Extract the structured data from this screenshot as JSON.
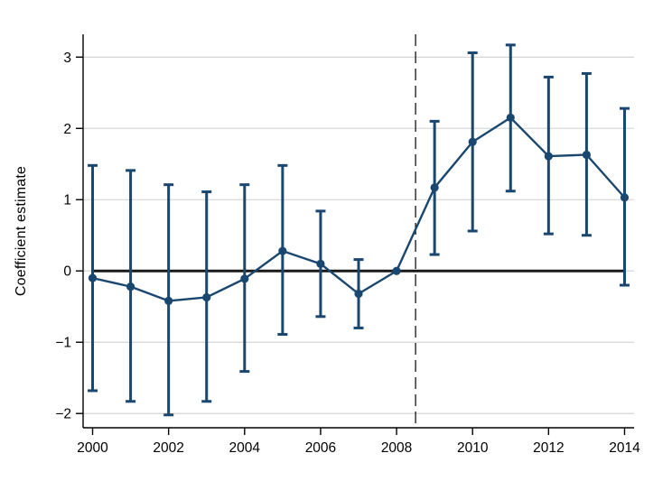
{
  "chart_data": {
    "type": "line",
    "title": "",
    "xlabel": "",
    "ylabel": "Coefficient estimate",
    "x": [
      2000,
      2001,
      2002,
      2003,
      2004,
      2005,
      2006,
      2007,
      2008,
      2009,
      2010,
      2011,
      2012,
      2013,
      2014
    ],
    "series": [
      {
        "name": "coefficient-estimate",
        "values": [
          -0.1,
          -0.22,
          -0.42,
          -0.37,
          -0.11,
          0.28,
          0.1,
          -0.32,
          0.0,
          1.17,
          1.81,
          2.15,
          1.61,
          1.63,
          1.03
        ]
      }
    ],
    "ci_low": [
      -1.68,
      -1.83,
      -2.02,
      -1.83,
      -1.41,
      -0.89,
      -0.64,
      -0.8,
      null,
      0.23,
      0.56,
      1.12,
      0.52,
      0.5,
      -0.2
    ],
    "ci_high": [
      1.48,
      1.41,
      1.21,
      1.11,
      1.21,
      1.48,
      0.84,
      0.16,
      null,
      2.1,
      3.06,
      3.17,
      2.72,
      2.77,
      2.28
    ],
    "reference_year": 2008,
    "x_ticks": [
      2000,
      2002,
      2004,
      2006,
      2008,
      2010,
      2012,
      2014
    ],
    "y_ticks": [
      -2,
      -1,
      0,
      1,
      2,
      3
    ],
    "xlim": [
      1999.75,
      2014.25
    ],
    "ylim": [
      -2.2,
      3.32
    ],
    "zero_line": {
      "y": 0,
      "x_start": 2000,
      "x_end": 2014
    },
    "event_line_x": 2008.5,
    "grid": true,
    "legend": false,
    "colors": {
      "series": "#1a476f",
      "grid": "#d0d0d0",
      "zero_line": "#1a1a1a",
      "event_line": "#000000",
      "axis": "#000000"
    }
  }
}
